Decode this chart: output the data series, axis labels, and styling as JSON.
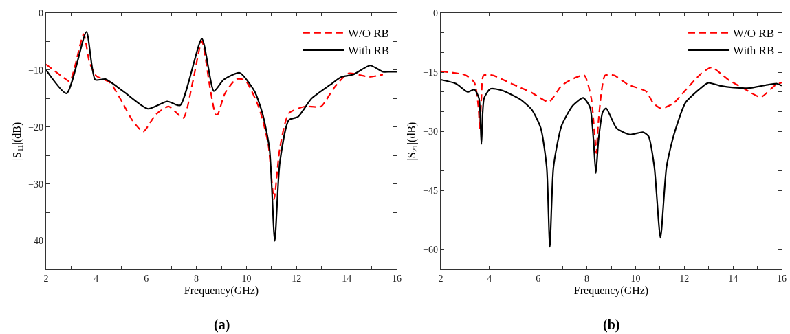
{
  "chart_data": [
    {
      "type": "line",
      "xlabel": "Frequency(GHz)",
      "ylabel": "|S$_{11}$|(dB)",
      "annotations": [
        "(a)"
      ],
      "legend": "top right",
      "grid": false,
      "xlim": [
        2,
        16
      ],
      "xticks": [
        2,
        {
          "value": 3,
          "label": null
        },
        4,
        {
          "value": 5,
          "label": null
        },
        6,
        {
          "value": 7,
          "label": null
        },
        8,
        {
          "value": 9,
          "label": null
        },
        10,
        {
          "value": 11,
          "label": null
        },
        12,
        {
          "value": 13,
          "label": null
        },
        14,
        {
          "value": 15,
          "label": null
        },
        16
      ],
      "ylim": [
        -45,
        0
      ],
      "yticks": [
        {
          "value": -45,
          "label": null
        },
        -40,
        {
          "value": -35,
          "label": null
        },
        -30,
        {
          "value": -25,
          "label": null
        },
        -20,
        {
          "value": -15,
          "label": null
        },
        -10,
        {
          "value": -5,
          "label": null
        },
        0
      ],
      "series": [
        {
          "name": "W/O RB",
          "color": "#ff0000",
          "line_style": "dashed",
          "x": [
            2,
            2.72,
            2.95,
            3.5,
            3.73,
            4.0,
            4.55,
            5.01,
            5.47,
            5.88,
            6.38,
            6.89,
            7.48,
            7.85,
            8.22,
            8.54,
            8.77,
            8.85,
            9.13,
            9.59,
            9.95,
            10.5,
            10.87,
            11.1,
            11.33,
            11.69,
            12.33,
            12.97,
            13.52,
            14.07,
            14.9,
            15.45
          ],
          "values": [
            -9.0,
            -11.4,
            -12.0,
            -3.7,
            -8.6,
            -11.0,
            -12.2,
            -15.4,
            -19.0,
            -20.8,
            -17.8,
            -16.4,
            -18.4,
            -12.2,
            -4.9,
            -13.0,
            -17.8,
            -17.8,
            -14.2,
            -11.6,
            -11.8,
            -16.6,
            -23.0,
            -32.7,
            -23.8,
            -17.6,
            -16.4,
            -16.4,
            -13.0,
            -10.6,
            -11.2,
            -10.8
          ]
        },
        {
          "name": "With RB",
          "color": "#000000",
          "line_style": "solid",
          "x": [
            2,
            2.82,
            3.61,
            3.96,
            4.37,
            5.1,
            6.07,
            6.84,
            7.35,
            8.22,
            8.7,
            9.09,
            9.73,
            10.33,
            10.65,
            10.92,
            11.13,
            11.33,
            11.69,
            12.06,
            12.6,
            13.34,
            13.8,
            14.26,
            14.94,
            15.45,
            15.72,
            16
          ],
          "values": [
            -10.0,
            -14.1,
            -3.3,
            -11.7,
            -11.6,
            -13.8,
            -16.8,
            -15.5,
            -16.2,
            -4.5,
            -13.7,
            -11.7,
            -10.5,
            -13.8,
            -17.8,
            -23.8,
            -40.0,
            -26.3,
            -18.8,
            -18.2,
            -15.0,
            -12.6,
            -11.2,
            -10.8,
            -9.2,
            -10.3,
            -10.3,
            -10.3
          ]
        }
      ]
    },
    {
      "type": "line",
      "xlabel": "Frequency(GHz)",
      "ylabel": "|S$_{21}$|(dB)",
      "annotations": [
        "(b)"
      ],
      "legend": "top right",
      "grid": false,
      "xlim": [
        2,
        16
      ],
      "xticks": [
        2,
        {
          "value": 3,
          "label": null
        },
        4,
        {
          "value": 5,
          "label": null
        },
        6,
        {
          "value": 7,
          "label": null
        },
        8,
        {
          "value": 9,
          "label": null
        },
        10,
        {
          "value": 11,
          "label": null
        },
        12,
        {
          "value": 13,
          "label": null
        },
        14,
        {
          "value": 15,
          "label": null
        },
        16
      ],
      "ylim": [
        -65,
        0
      ],
      "yticks": [
        {
          "value": -65,
          "label": null
        },
        -60,
        {
          "value": -55,
          "label": null
        },
        {
          "value": -50,
          "label": null
        },
        -45,
        {
          "value": -40,
          "label": null
        },
        {
          "value": -35,
          "label": null
        },
        -30,
        {
          "value": -25,
          "label": null
        },
        {
          "value": -20,
          "label": null
        },
        -15,
        {
          "value": -10,
          "label": null
        },
        {
          "value": -5,
          "label": null
        },
        0
      ],
      "series": [
        {
          "name": "W/O RB",
          "color": "#ff0000",
          "line_style": "dashed",
          "x": [
            2,
            3.0,
            3.38,
            3.55,
            3.6,
            3.67,
            3.76,
            4.14,
            4.98,
            5.74,
            6.44,
            6.96,
            7.52,
            7.9,
            8.18,
            8.32,
            8.39,
            8.46,
            8.6,
            8.75,
            9.12,
            9.69,
            10.44,
            10.72,
            11.05,
            11.57,
            12.04,
            12.7,
            13.12,
            13.83,
            14.49,
            15.14,
            15.71,
            16
          ],
          "values": [
            -14.8,
            -15.7,
            -17.6,
            -24.0,
            -29.2,
            -21.6,
            -15.8,
            -15.8,
            -18.1,
            -20.2,
            -22.5,
            -18.4,
            -16.4,
            -15.8,
            -21.6,
            -30.9,
            -35.5,
            -28.6,
            -19.9,
            -15.8,
            -15.8,
            -18.1,
            -19.9,
            -22.8,
            -24.2,
            -22.8,
            -19.6,
            -15.3,
            -13.8,
            -17.0,
            -19.3,
            -21.3,
            -18.4,
            -17.6
          ]
        },
        {
          "name": "With RB",
          "color": "#000000",
          "line_style": "solid",
          "x": [
            2,
            2.63,
            3.1,
            3.38,
            3.57,
            3.67,
            3.78,
            4.04,
            4.51,
            5.27,
            5.74,
            6.11,
            6.35,
            6.48,
            6.63,
            6.96,
            7.43,
            7.85,
            8.13,
            8.27,
            8.37,
            8.48,
            8.65,
            8.79,
            9.22,
            9.78,
            10.3,
            10.53,
            10.77,
            11.02,
            11.27,
            11.57,
            12.04,
            12.51,
            12.98,
            13.45,
            14.02,
            14.67,
            15.33,
            15.8,
            16
          ],
          "values": [
            -16.9,
            -17.9,
            -20.0,
            -19.4,
            -21.6,
            -33.2,
            -21.6,
            -19.2,
            -19.6,
            -21.9,
            -24.5,
            -29.2,
            -39.0,
            -59.3,
            -39.0,
            -28.6,
            -23.4,
            -21.5,
            -23.9,
            -32.0,
            -40.6,
            -32.0,
            -25.1,
            -24.1,
            -29.2,
            -30.8,
            -30.2,
            -31.2,
            -39.0,
            -57.0,
            -39.0,
            -30.9,
            -22.8,
            -19.9,
            -17.7,
            -18.4,
            -18.9,
            -19.0,
            -18.3,
            -17.9,
            -18.4
          ]
        }
      ]
    }
  ]
}
